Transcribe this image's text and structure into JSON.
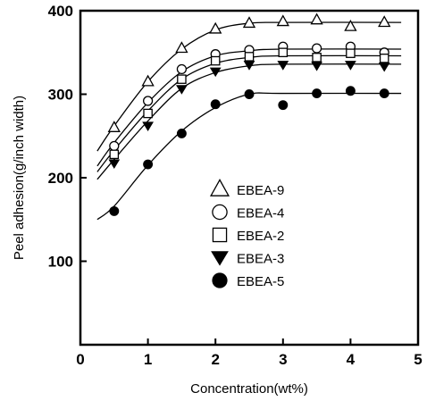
{
  "chart_data": {
    "type": "scatter",
    "title": "",
    "xlabel": "Concentration(wt%)",
    "ylabel": "Peel adhesion(g/inch width)",
    "xlim": [
      0,
      5
    ],
    "ylim": [
      0,
      400
    ],
    "xticks": [
      0,
      1,
      2,
      3,
      4,
      5
    ],
    "yticks": [
      100,
      200,
      300,
      400
    ],
    "grid": false,
    "legend_position": "center",
    "series": [
      {
        "name": "EBEA-9",
        "marker": "triangle-open",
        "x": [
          0.5,
          1.0,
          1.5,
          2.0,
          2.5,
          3.0,
          3.5,
          4.0,
          4.5
        ],
        "y": [
          260,
          315,
          355,
          378,
          385,
          387,
          389,
          381,
          386
        ],
        "fit": [
          [
            0.25,
            232
          ],
          [
            0.5,
            262
          ],
          [
            1.0,
            315
          ],
          [
            1.5,
            354
          ],
          [
            2.0,
            377
          ],
          [
            2.5,
            385
          ],
          [
            3.0,
            386
          ],
          [
            4.75,
            386
          ]
        ]
      },
      {
        "name": "EBEA-4",
        "marker": "circle-open",
        "x": [
          0.5,
          1.0,
          1.5,
          2.0,
          2.5,
          3.0,
          3.5,
          4.0,
          4.5
        ],
        "y": [
          238,
          292,
          330,
          348,
          353,
          357,
          355,
          357,
          350
        ],
        "fit": [
          [
            0.25,
            214
          ],
          [
            0.5,
            242
          ],
          [
            1.0,
            290
          ],
          [
            1.5,
            327
          ],
          [
            2.0,
            346
          ],
          [
            2.5,
            352
          ],
          [
            3.0,
            354
          ],
          [
            4.75,
            354
          ]
        ]
      },
      {
        "name": "EBEA-2",
        "marker": "square-open",
        "x": [
          0.5,
          1.0,
          1.5,
          2.0,
          2.5,
          3.0,
          3.5,
          4.0,
          4.5
        ],
        "y": [
          228,
          277,
          318,
          340,
          345,
          350,
          344,
          349,
          343
        ],
        "fit": [
          [
            0.25,
            207
          ],
          [
            0.5,
            233
          ],
          [
            1.0,
            280
          ],
          [
            1.5,
            318
          ],
          [
            2.0,
            337
          ],
          [
            2.5,
            344
          ],
          [
            3.0,
            346
          ],
          [
            4.75,
            346
          ]
        ]
      },
      {
        "name": "EBEA-3",
        "marker": "triangle-down-filled",
        "x": [
          0.5,
          1.0,
          1.5,
          2.0,
          2.5,
          3.0,
          3.5,
          4.0,
          4.5
        ],
        "y": [
          217,
          262,
          306,
          327,
          335,
          335,
          334,
          335,
          333
        ],
        "fit": [
          [
            0.25,
            198
          ],
          [
            0.5,
            222
          ],
          [
            1.0,
            268
          ],
          [
            1.5,
            307
          ],
          [
            2.0,
            326
          ],
          [
            2.5,
            334
          ],
          [
            3.0,
            336
          ],
          [
            4.75,
            336
          ]
        ]
      },
      {
        "name": "EBEA-5",
        "marker": "circle-filled",
        "x": [
          0.5,
          1.0,
          1.5,
          2.0,
          2.5,
          3.0,
          3.5,
          4.0,
          4.5
        ],
        "y": [
          160,
          216,
          253,
          288,
          300,
          287,
          301,
          304,
          301
        ],
        "fit": [
          [
            0.25,
            150
          ],
          [
            0.5,
            166
          ],
          [
            1.0,
            215
          ],
          [
            1.5,
            256
          ],
          [
            2.0,
            284
          ],
          [
            2.5,
            300
          ],
          [
            3.0,
            301
          ],
          [
            4.75,
            301
          ]
        ]
      }
    ]
  },
  "colors": {
    "ink": "#000000",
    "background": "#ffffff"
  }
}
